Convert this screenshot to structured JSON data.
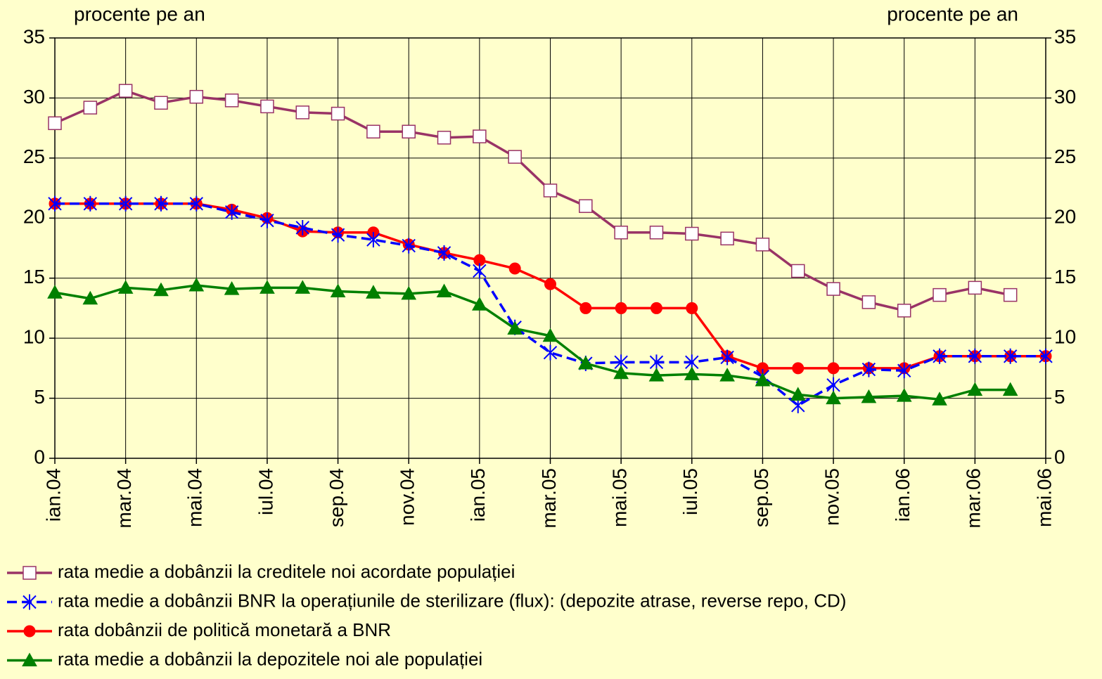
{
  "chart_data": {
    "type": "line",
    "y_label": "procente pe an",
    "y2_label": "procente pe an",
    "categories": [
      "ian.04",
      null,
      "mar.04",
      null,
      "mai.04",
      null,
      "iul.04",
      null,
      "sep.04",
      null,
      "nov.04",
      null,
      "ian.05",
      null,
      "mar.05",
      null,
      "mai.05",
      null,
      "iul.05",
      null,
      "sep.05",
      null,
      "nov.05",
      null,
      "ian.06",
      null,
      "mar.06",
      null,
      "mai.06"
    ],
    "series": [
      {
        "name": "rata medie a dobânzii la creditele noi acordate populației",
        "color": "#993366",
        "marker": "square",
        "values": [
          27.9,
          29.2,
          30.6,
          29.6,
          30.1,
          29.8,
          29.3,
          28.8,
          28.7,
          27.2,
          27.2,
          26.7,
          26.8,
          25.1,
          22.3,
          21.0,
          18.8,
          18.8,
          18.7,
          18.3,
          17.8,
          15.6,
          14.1,
          13.0,
          12.3,
          13.6,
          14.2,
          13.6,
          null
        ]
      },
      {
        "name": "rata dobânzii de politică monetară a BNR",
        "color": "#ff0000",
        "marker": "circle",
        "values": [
          21.2,
          21.2,
          21.2,
          21.2,
          21.2,
          20.7,
          20.0,
          18.9,
          18.8,
          18.8,
          17.8,
          17.1,
          16.5,
          15.8,
          14.5,
          12.5,
          12.5,
          12.5,
          12.5,
          8.5,
          7.5,
          7.5,
          7.5,
          7.5,
          7.5,
          8.5,
          8.5,
          8.5,
          8.5
        ]
      },
      {
        "name": "rata medie a dobânzii BNR la operațiunile de sterilizare (flux): (depozite atrase, reverse repo, CD)",
        "color": "#0000ff",
        "marker": "x",
        "dashed": true,
        "values": [
          21.2,
          21.2,
          21.2,
          21.2,
          21.2,
          20.5,
          19.8,
          19.2,
          18.6,
          18.2,
          17.7,
          17.1,
          15.6,
          10.9,
          8.8,
          7.9,
          8.0,
          8.0,
          8.0,
          8.4,
          6.8,
          4.4,
          6.1,
          7.4,
          7.3,
          8.5,
          8.5,
          8.5,
          8.5
        ]
      },
      {
        "name": "rata medie a dobânzii la depozitele noi ale populației",
        "color": "#008000",
        "marker": "triangle",
        "values": [
          13.8,
          13.3,
          14.2,
          14.0,
          14.4,
          14.1,
          14.2,
          14.2,
          13.9,
          13.8,
          13.7,
          13.9,
          12.8,
          10.8,
          10.2,
          7.9,
          7.1,
          6.9,
          7.0,
          6.9,
          6.5,
          5.3,
          5.0,
          5.1,
          5.2,
          4.9,
          5.7,
          5.7,
          null
        ]
      }
    ],
    "legend_order": [
      0,
      2,
      1,
      3
    ],
    "ylim": [
      0,
      35
    ],
    "yticks": [
      0,
      5,
      10,
      15,
      20,
      25,
      30,
      35
    ],
    "y2lim": [
      0,
      35
    ],
    "y2ticks": [
      0,
      5,
      10,
      15,
      20,
      25,
      30,
      35
    ],
    "grid": true
  }
}
